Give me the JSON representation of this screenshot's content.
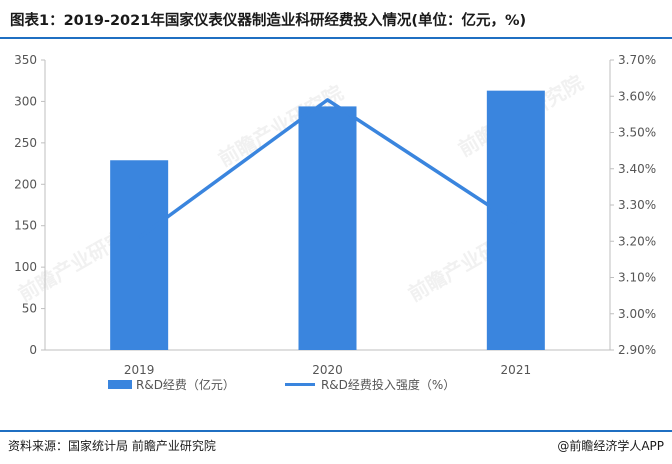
{
  "title": "图表1：2019-2021年国家仪表仪器制造业科研经费投入情况(单位：亿元，%)",
  "source": "资料来源：国家统计局 前瞻产业研究院",
  "brand": "@前瞻经济学人APP",
  "watermark": "前瞻产业研究院",
  "colors": {
    "accent": "#3a85de",
    "rule": "#1f6fc2"
  },
  "chart_data": {
    "type": "bar+line",
    "categories": [
      "2019",
      "2020",
      "2021"
    ],
    "series": [
      {
        "name": "R&D经费（亿元）",
        "type": "bar",
        "axis": "left",
        "values": [
          229,
          294,
          313
        ]
      },
      {
        "name": "R&D经费投入强度（%）",
        "type": "line",
        "axis": "right",
        "values": [
          3.21,
          3.59,
          3.25
        ]
      }
    ],
    "y_left": {
      "min": 0,
      "max": 350,
      "ticks": [
        "0",
        "50",
        "100",
        "150",
        "200",
        "250",
        "300",
        "350"
      ]
    },
    "y_right": {
      "min": 2.9,
      "max": 3.7,
      "ticks": [
        "2.90%",
        "3.00%",
        "3.10%",
        "3.20%",
        "3.30%",
        "3.40%",
        "3.50%",
        "3.60%",
        "3.70%"
      ]
    },
    "grid": false,
    "legend": "bottom"
  }
}
